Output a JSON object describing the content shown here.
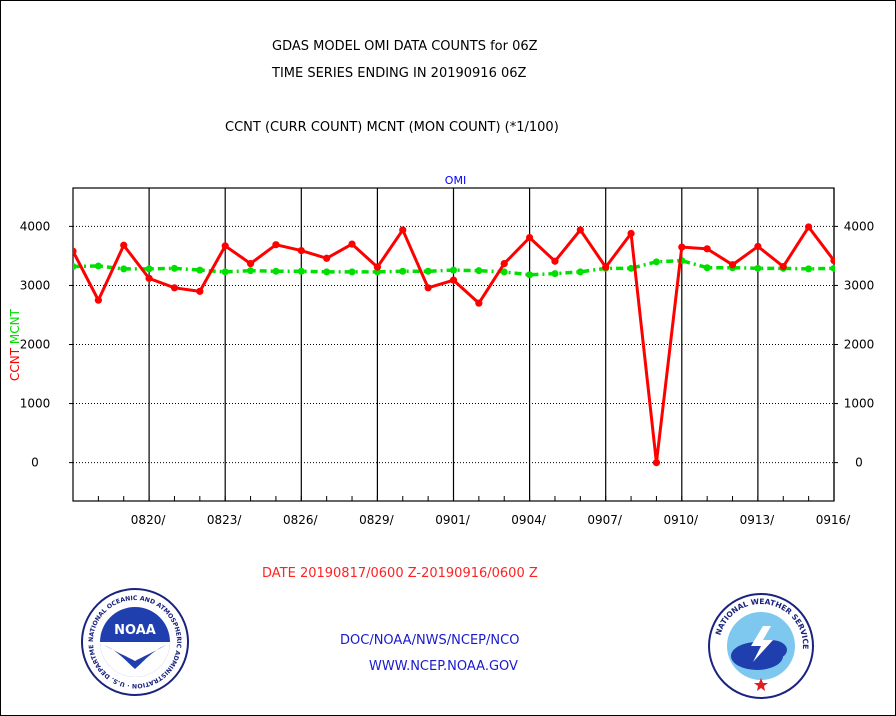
{
  "header": {
    "line1": "GDAS MODEL OMI DATA COUNTS for 06Z",
    "line2": "TIME SERIES ENDING IN 20190916 06Z",
    "line3": "CCNT (CURR COUNT) MCNT (MON COUNT) (*1/100)"
  },
  "footer": {
    "date_range": "DATE 20190817/0600 Z-20190916/0600 Z",
    "org": "DOC/NOAA/NWS/NCEP/NCO",
    "url": "WWW.NCEP.NOAA.GOV"
  },
  "logos": {
    "noaa_ring_text": "NATIONAL OCEANIC AND ATMOSPHERIC ADMINISTRATION · U.S. DEPARTMENT OF COMMERCE",
    "noaa_center": "NOAA",
    "nws_ring_text": "NATIONAL WEATHER SERVICE"
  },
  "colors": {
    "ccnt": "#ff0000",
    "mcnt": "#00e000",
    "title_blue": "#0000ff",
    "footer_blue": "#1a1acc"
  },
  "chart_data": {
    "type": "line",
    "title": "OMI",
    "ylabel_parts": [
      "CCNT",
      "MCNT"
    ],
    "xlim": [
      0,
      30
    ],
    "ylim": [
      -650,
      4650
    ],
    "yticks": [
      0,
      1000,
      2000,
      3000,
      4000
    ],
    "x_tick_labels": [
      "0820/",
      "0823/",
      "0826/",
      "0829/",
      "0901/",
      "0904/",
      "0907/",
      "0910/",
      "0913/",
      "0916/"
    ],
    "x_tick_days": [
      3,
      6,
      9,
      12,
      15,
      18,
      21,
      24,
      27,
      30
    ],
    "grid": true,
    "series": [
      {
        "name": "CCNT",
        "values": [
          3580,
          2750,
          3680,
          3120,
          2960,
          2900,
          3670,
          3370,
          3690,
          3590,
          3460,
          3700,
          3310,
          3940,
          2960,
          3090,
          2700,
          3370,
          3810,
          3410,
          3940,
          3310,
          3880,
          0,
          3650,
          3620,
          3350,
          3660,
          3320,
          3990,
          3420
        ]
      },
      {
        "name": "MCNT",
        "values": [
          3320,
          3330,
          3280,
          3280,
          3290,
          3260,
          3230,
          3250,
          3240,
          3240,
          3230,
          3230,
          3230,
          3240,
          3240,
          3260,
          3250,
          3230,
          3180,
          3200,
          3230,
          3290,
          3290,
          3400,
          3420,
          3300,
          3300,
          3290,
          3290,
          3280,
          3290
        ]
      }
    ]
  }
}
